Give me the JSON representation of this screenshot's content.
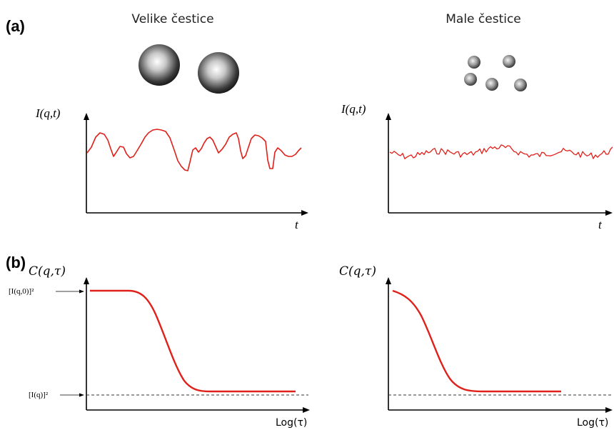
{
  "panels": {
    "a_label": "(a)",
    "b_label": "(b)"
  },
  "columns": {
    "left_title": "Velike čestice",
    "right_title": "Male čestice"
  },
  "intensity_plots": {
    "y_label": "I(q,t)",
    "x_label": "t",
    "line_color": "#e0201a"
  },
  "correlation_plots": {
    "y_label": "C(q,τ)",
    "x_label": "Log(τ)",
    "upper_level_label": "[I(q,0)]²",
    "baseline_label": "[I(q)]²",
    "curve_color": "#e0201a"
  }
}
